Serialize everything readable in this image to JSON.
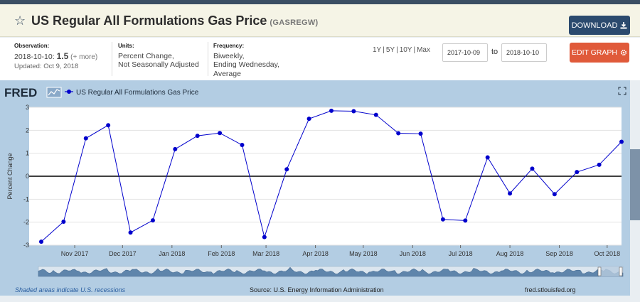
{
  "header": {
    "title": "US Regular All Formulations Gas Price",
    "series_id": "(GASREGW)",
    "download_label": "DOWNLOAD"
  },
  "meta": {
    "observation_label": "Observation:",
    "observation_date": "2018-10-10:",
    "observation_value": "1.5",
    "observation_more": "(+ more)",
    "updated": "Updated: Oct 9, 2018",
    "units_label": "Units:",
    "units_line1": "Percent Change,",
    "units_line2": "Not Seasonally Adjusted",
    "frequency_label": "Frequency:",
    "frequency_line1": "Biweekly,",
    "frequency_line2": "Ending Wednesday,",
    "frequency_line3": "Average"
  },
  "controls": {
    "range_1y": "1Y",
    "range_5y": "5Y",
    "range_10y": "10Y",
    "range_max": "Max",
    "start_date": "2017-10-09",
    "to_label": "to",
    "end_date": "2018-10-10",
    "edit_label": "EDIT GRAPH"
  },
  "chart_data": {
    "type": "line",
    "logo": "FRED",
    "legend": "US Regular All Formulations Gas Price",
    "ylabel": "Percent Change",
    "ylim": [
      -3,
      3
    ],
    "yticks": [
      -3,
      -2,
      -1,
      0,
      1,
      2,
      3
    ],
    "xlim": [
      "2017-10-11",
      "2018-10-10"
    ],
    "xticks": [
      {
        "date": "2017-11-01",
        "label": "Nov 2017"
      },
      {
        "date": "2017-12-01",
        "label": "Dec 2017"
      },
      {
        "date": "2018-01-01",
        "label": "Jan 2018"
      },
      {
        "date": "2018-02-01",
        "label": "Feb 2018"
      },
      {
        "date": "2018-03-01",
        "label": "Mar 2018"
      },
      {
        "date": "2018-04-01",
        "label": "Apr 2018"
      },
      {
        "date": "2018-05-01",
        "label": "May 2018"
      },
      {
        "date": "2018-06-01",
        "label": "Jun 2018"
      },
      {
        "date": "2018-07-01",
        "label": "Jul 2018"
      },
      {
        "date": "2018-08-01",
        "label": "Aug 2018"
      },
      {
        "date": "2018-09-01",
        "label": "Sep 2018"
      },
      {
        "date": "2018-10-01",
        "label": "Oct 2018"
      }
    ],
    "series": [
      {
        "color": "#0000cc",
        "x": [
          "2017-10-11",
          "2017-10-25",
          "2017-11-08",
          "2017-11-22",
          "2017-12-06",
          "2017-12-20",
          "2018-01-03",
          "2018-01-17",
          "2018-01-31",
          "2018-02-14",
          "2018-02-28",
          "2018-03-14",
          "2018-03-28",
          "2018-04-11",
          "2018-04-25",
          "2018-05-09",
          "2018-05-23",
          "2018-06-06",
          "2018-06-20",
          "2018-07-04",
          "2018-07-18",
          "2018-08-01",
          "2018-08-15",
          "2018-08-29",
          "2018-09-12",
          "2018-09-26",
          "2018-10-10"
        ],
        "values": [
          -2.85,
          -1.98,
          1.65,
          2.22,
          -2.45,
          -1.92,
          1.18,
          1.76,
          1.88,
          1.36,
          -2.65,
          0.3,
          2.5,
          2.85,
          2.83,
          2.67,
          1.87,
          1.85,
          -1.88,
          -1.93,
          0.82,
          -0.75,
          0.33,
          -0.78,
          0.18,
          0.5,
          1.5
        ]
      }
    ],
    "zero_line": true,
    "grid": "horizontal"
  },
  "footer": {
    "recession_note": "Shaded areas indicate U.S. recessions",
    "source": "Source: U.S. Energy Information Administration",
    "site": "fred.stlouisfed.org"
  }
}
